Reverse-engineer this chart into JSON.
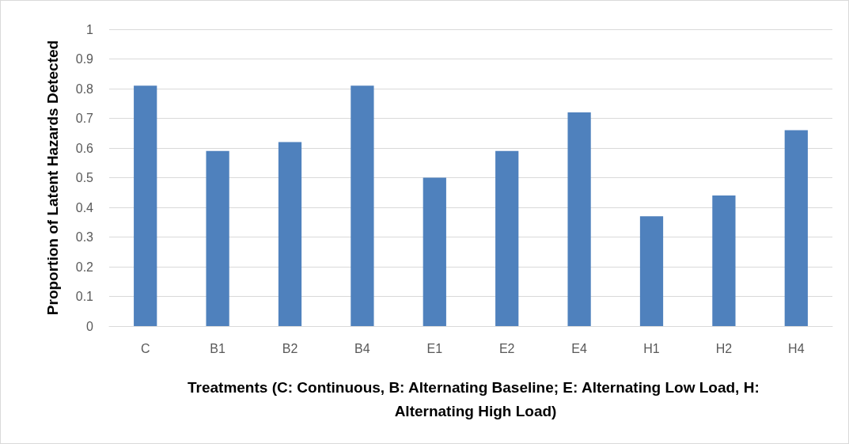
{
  "chart_data": {
    "type": "bar",
    "xlabel": "Treatments (C: Continuous, B: Alternating Baseline; E: Alternating Low Load, H: Alternating High Load)",
    "ylabel": "Proportion of Latent Hazards Detected",
    "categories": [
      "C",
      "B1",
      "B2",
      "B4",
      "E1",
      "E2",
      "E4",
      "H1",
      "H2",
      "H4"
    ],
    "values": [
      0.81,
      0.59,
      0.62,
      0.81,
      0.5,
      0.59,
      0.72,
      0.37,
      0.44,
      0.66
    ],
    "color": "#4f81bd",
    "ylim": [
      0,
      1
    ],
    "yticks": [
      0,
      0.1,
      0.2,
      0.3,
      0.4,
      0.5,
      0.6,
      0.7,
      0.8,
      0.9,
      1
    ],
    "grid": "y"
  }
}
